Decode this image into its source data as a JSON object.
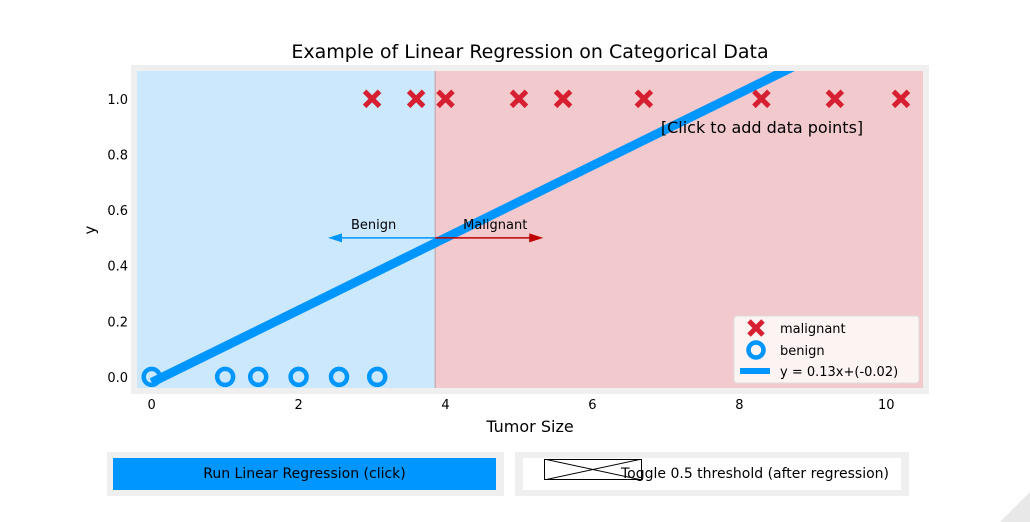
{
  "chart_data": {
    "type": "scatter",
    "title": "Example of Linear Regression on Categorical Data",
    "xlabel": "Tumor Size",
    "ylabel": "y",
    "xlim": [
      -0.2,
      10.5
    ],
    "ylim": [
      -0.04,
      1.1
    ],
    "xticks": [
      0,
      2,
      4,
      6,
      8,
      10
    ],
    "xtick_labels": [
      "0",
      "2",
      "4",
      "6",
      "8",
      "10"
    ],
    "yticks": [
      0.0,
      0.2,
      0.4,
      0.6,
      0.8,
      1.0
    ],
    "ytick_labels": [
      "0.0",
      "0.2",
      "0.4",
      "0.6",
      "0.8",
      "1.0"
    ],
    "threshold_x": 3.86,
    "regions": [
      {
        "name": "benign",
        "color": "#cce8fc"
      },
      {
        "name": "malignant",
        "color": "#f2cacd"
      }
    ],
    "series": [
      {
        "name": "malignant",
        "marker": "x",
        "color": "#d62032",
        "x": [
          3.0,
          3.6,
          4.0,
          5.0,
          5.6,
          6.7,
          8.3,
          9.3,
          10.2
        ],
        "y": [
          1,
          1,
          1,
          1,
          1,
          1,
          1,
          1,
          1
        ]
      },
      {
        "name": "benign",
        "marker": "o",
        "color": "#0096ff",
        "x": [
          0.0,
          1.0,
          1.45,
          2.0,
          2.55,
          3.07
        ],
        "y": [
          0,
          0,
          0,
          0,
          0,
          0
        ]
      }
    ],
    "regression": {
      "name": "y = 0.13x+(-0.02)",
      "slope": 0.13,
      "intercept": -0.02,
      "color": "#0096ff"
    },
    "arrows": [
      {
        "label": "Benign",
        "from_x": 3.86,
        "to_x": 2.4,
        "y": 0.5,
        "color": "#0096ff"
      },
      {
        "label": "Malignant",
        "from_x": 3.86,
        "to_x": 5.33,
        "y": 0.5,
        "color": "#c00000"
      }
    ],
    "annotation": "[Click to add data points]",
    "legend": {
      "position": "bottom-right",
      "entries": [
        "malignant",
        "benign",
        "y = 0.13x+(-0.02)"
      ]
    }
  },
  "controls": {
    "run_label": "Run Linear Regression (click)",
    "toggle_label": "Toggle 0.5 threshold (after regression)"
  }
}
